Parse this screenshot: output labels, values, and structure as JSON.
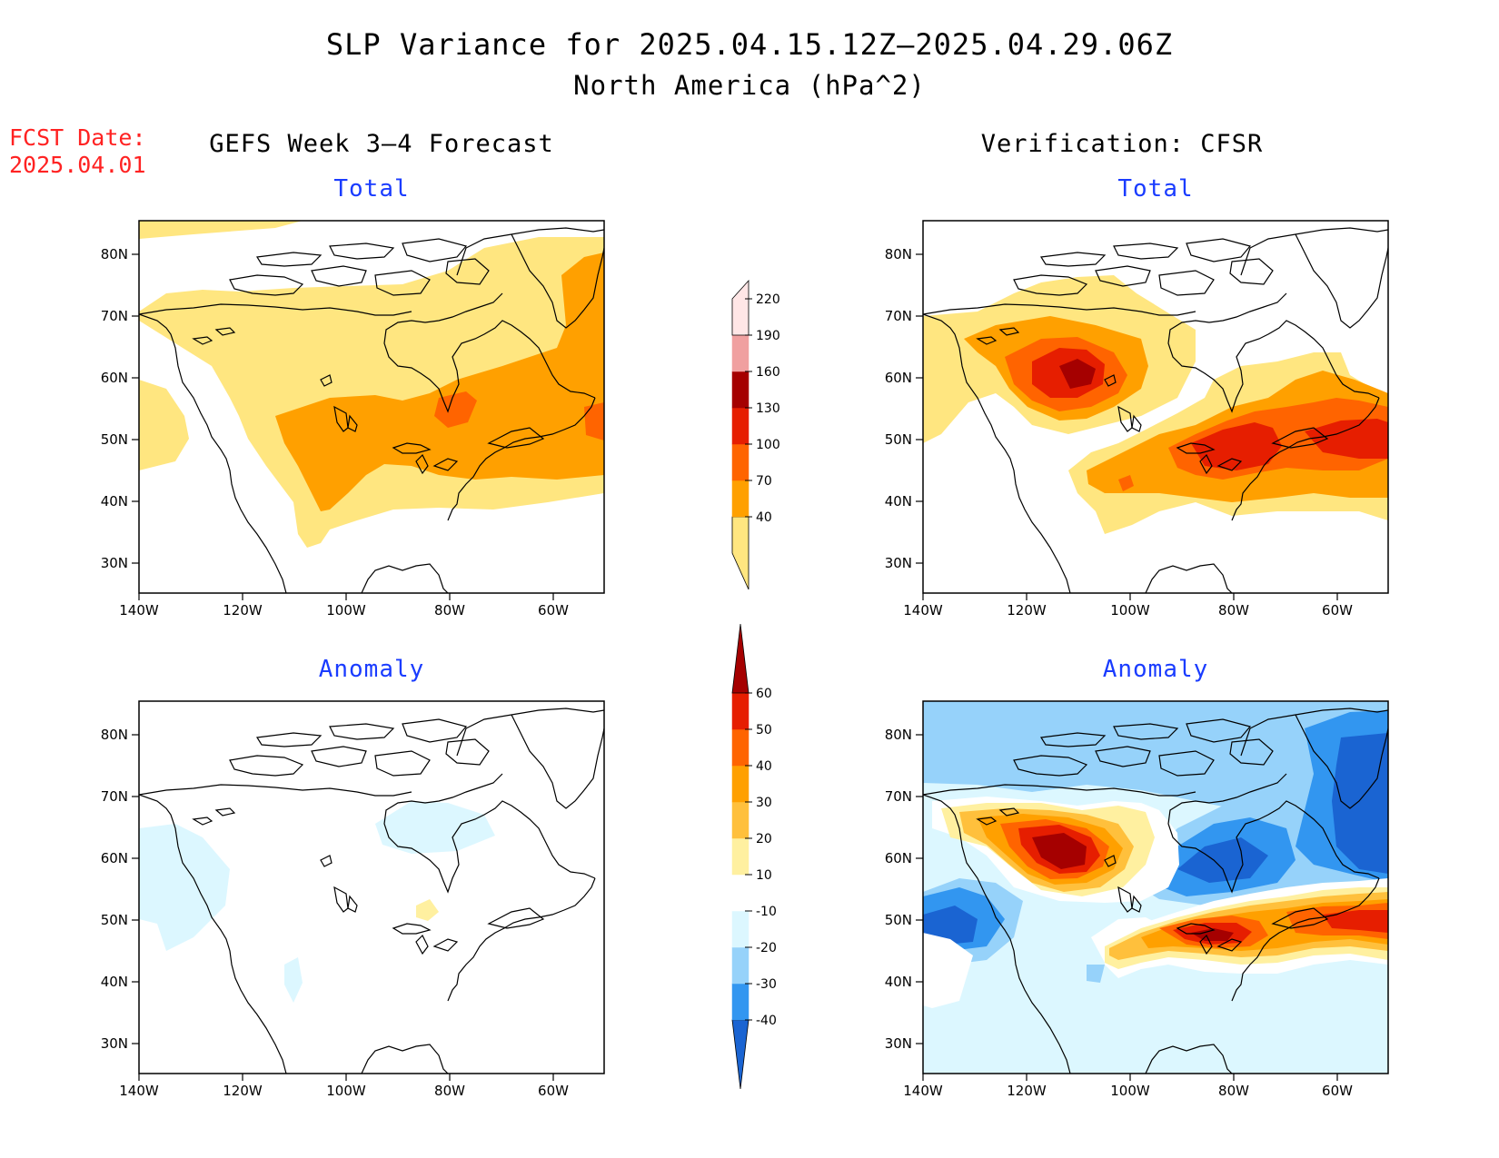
{
  "title": {
    "line1": "SLP Variance for 2025.04.15.12Z–2025.04.29.06Z",
    "line2": "North America (hPa^2)"
  },
  "fcst_date": {
    "label": "FCST Date:",
    "value": "2025.04.01"
  },
  "columns": {
    "left": "GEFS Week 3–4 Forecast",
    "right": "Verification: CFSR"
  },
  "panels": {
    "fc_total": "Total",
    "ver_total": "Total",
    "fc_anom": "Anomaly",
    "ver_anom": "Anomaly"
  },
  "axes": {
    "lon_ticks": [
      "140W",
      "120W",
      "100W",
      "80W",
      "60W"
    ],
    "lat_ticks": [
      "80N",
      "70N",
      "60N",
      "50N",
      "40N",
      "30N"
    ]
  },
  "colorbars": {
    "total": {
      "levels": [
        "40",
        "70",
        "100",
        "130",
        "160",
        "190",
        "220"
      ],
      "colors": [
        "#ffe680",
        "#ffa000",
        "#ff6400",
        "#e61e00",
        "#a50000",
        "#f0a0a0",
        "#ffe6e6"
      ]
    },
    "anomaly": {
      "levels": [
        "-40",
        "-30",
        "-20",
        "-10",
        "10",
        "20",
        "30",
        "40",
        "50",
        "60"
      ],
      "colors": [
        "#1a64d2",
        "#3296f0",
        "#96d2fa",
        "#dcf7ff",
        "#ffffff",
        "#fff0a0",
        "#ffc03c",
        "#ffa000",
        "#ff6400",
        "#e61e00",
        "#a50000"
      ]
    }
  }
}
